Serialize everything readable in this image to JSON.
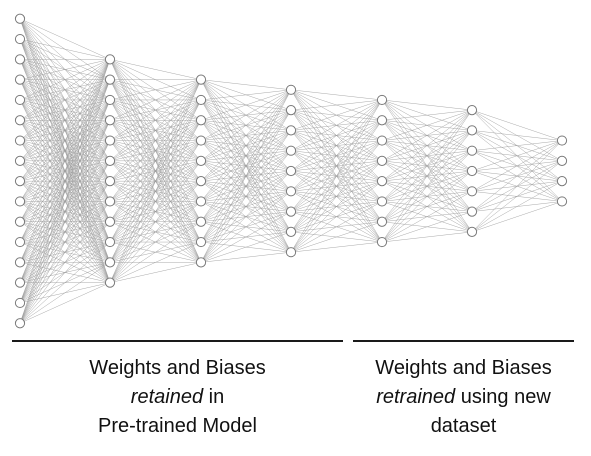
{
  "network": {
    "layer_neuron_counts": [
      16,
      12,
      10,
      9,
      8,
      7,
      4
    ],
    "colors": {
      "connection": "#9a9a9a",
      "neuron_stroke": "#7a7a7a",
      "neuron_fill": "#ffffff"
    }
  },
  "captions": {
    "left": {
      "line1": "Weights and Biases",
      "line2_emphasis": "retained",
      "line2_rest": " in",
      "line3": "Pre-trained Model"
    },
    "right": {
      "line1": "Weights and Biases",
      "line2_emphasis": "retrained",
      "line2_rest": " using new",
      "line3": "dataset"
    }
  }
}
